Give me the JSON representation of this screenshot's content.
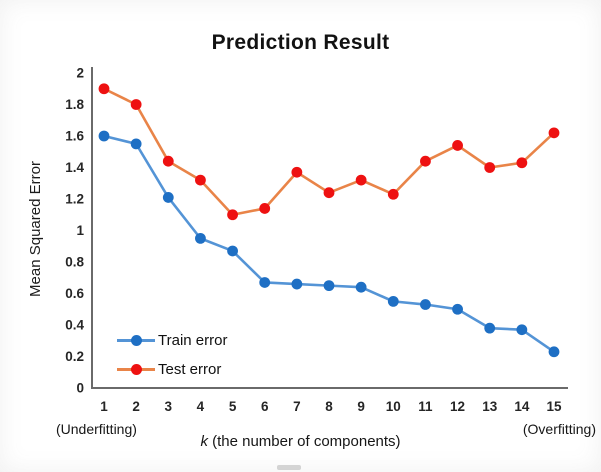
{
  "chart_data": {
    "type": "line",
    "title": "Prediction Result",
    "ylabel": "Mean Squared Error",
    "xlabel_k": "k",
    "xlabel_rest": " (the number of components)",
    "x_annotation_left": "(Underfitting)",
    "x_annotation_right": "(Overfitting)",
    "categories": [
      1,
      2,
      3,
      4,
      5,
      6,
      7,
      8,
      9,
      10,
      11,
      12,
      13,
      14,
      15
    ],
    "y_tick_labels": [
      "2",
      "1.8",
      "1.6",
      "1.4",
      "1.2",
      "1",
      "0.8",
      "0.6",
      "0.4",
      "0.2",
      "0"
    ],
    "ylim": [
      0,
      2
    ],
    "grid": false,
    "legend_position": "inside-lower-left",
    "axis_color": "#6a6a6a",
    "tick_text_color": "#262626",
    "series": [
      {
        "name": "Train error",
        "line_color": "#5494d6",
        "marker_color": "#1e6fc4",
        "values": [
          1.6,
          1.55,
          1.21,
          0.95,
          0.87,
          0.67,
          0.66,
          0.65,
          0.64,
          0.55,
          0.53,
          0.5,
          0.38,
          0.37,
          0.23
        ]
      },
      {
        "name": "Test error",
        "line_color": "#e98448",
        "marker_color": "#ee1111",
        "values": [
          1.9,
          1.8,
          1.44,
          1.32,
          1.1,
          1.14,
          1.37,
          1.24,
          1.32,
          1.23,
          1.44,
          1.54,
          1.4,
          1.43,
          1.62
        ]
      }
    ]
  }
}
